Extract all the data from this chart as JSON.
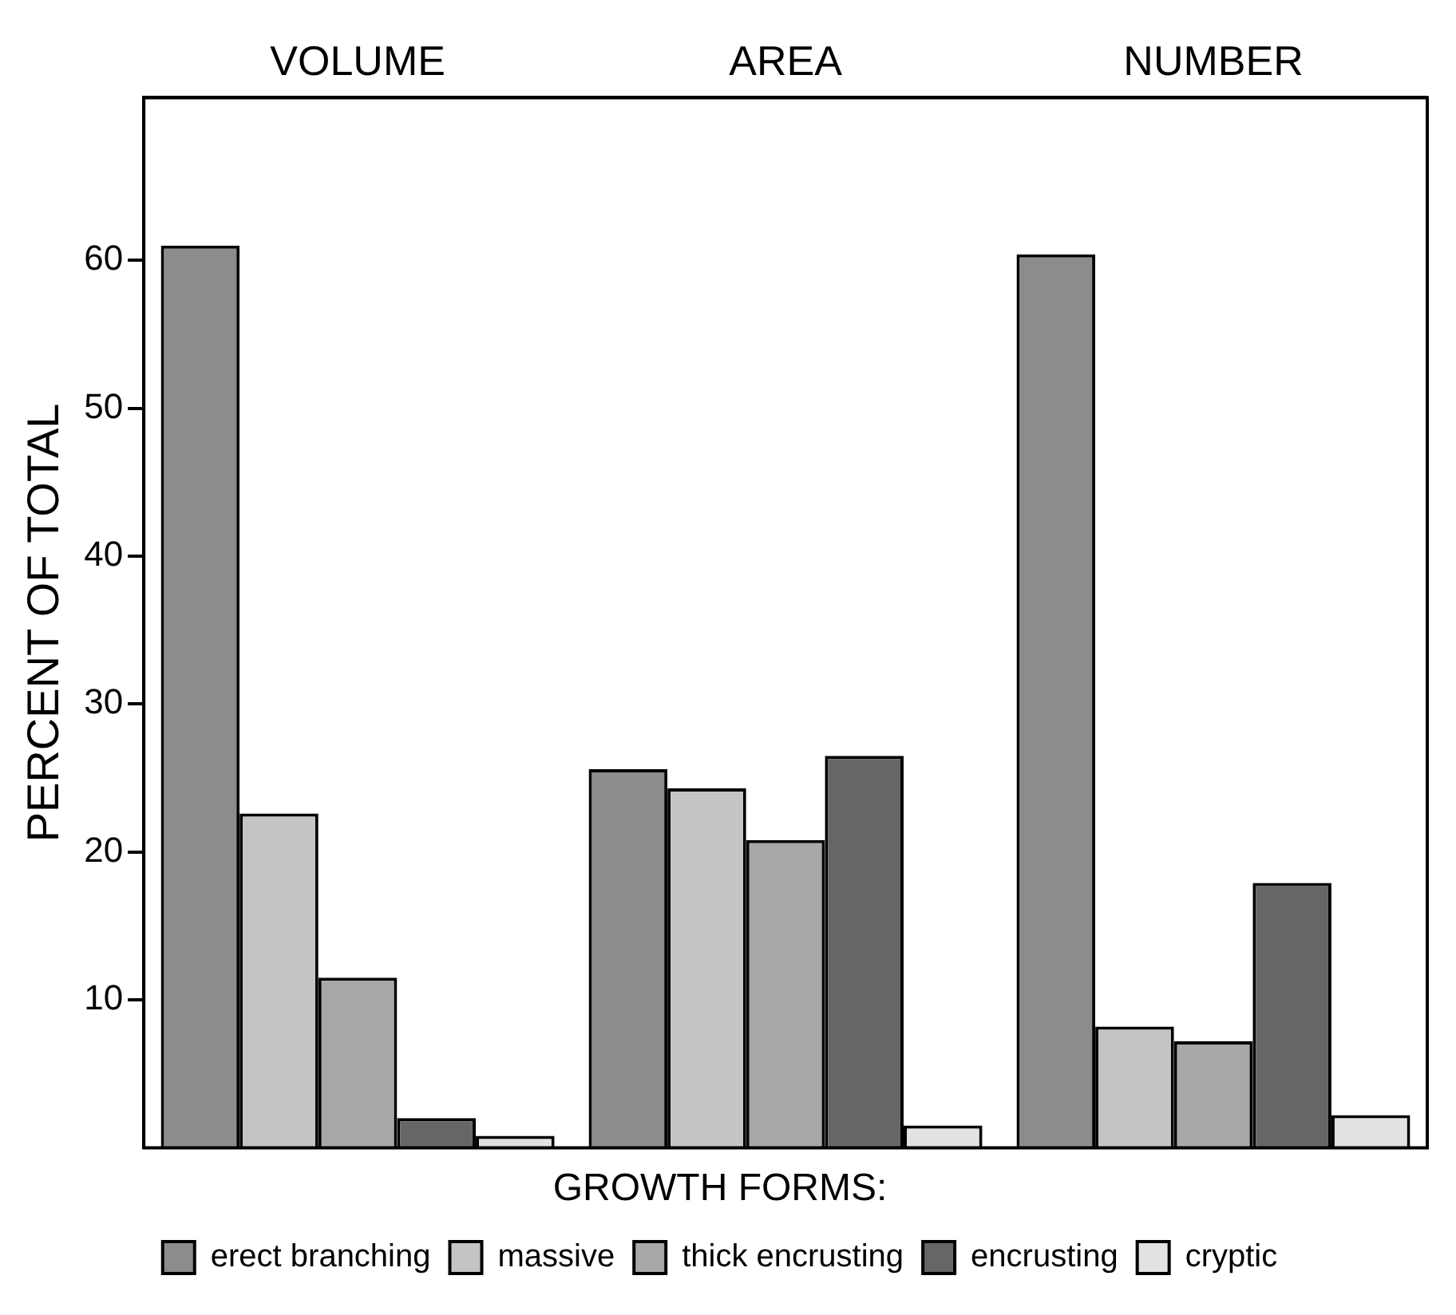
{
  "chart_data": {
    "type": "bar",
    "categories": [
      "VOLUME",
      "AREA",
      "NUMBER"
    ],
    "ylabel": "PERCENT OF TOTAL",
    "legend_title": "GROWTH FORMS:",
    "series": [
      {
        "name": "erect branching",
        "color": "#8c8c8c",
        "values": [
          61,
          25.6,
          60.4
        ]
      },
      {
        "name": "massive",
        "color": "#c4c4c4",
        "values": [
          22.6,
          24.3,
          8.2
        ]
      },
      {
        "name": "thick encrusting",
        "color": "#a8a8a8",
        "values": [
          11.5,
          20.8,
          7.2
        ]
      },
      {
        "name": "encrusting",
        "color": "#666666",
        "values": [
          2,
          26.5,
          17.9
        ]
      },
      {
        "name": "cryptic",
        "color": "#e2e2e2",
        "values": [
          0.8,
          1.5,
          2.2
        ]
      }
    ],
    "ylim": [
      0,
      71
    ],
    "yticks": [
      10,
      20,
      30,
      40,
      50,
      60
    ],
    "grid": false,
    "legend": "bottom"
  }
}
